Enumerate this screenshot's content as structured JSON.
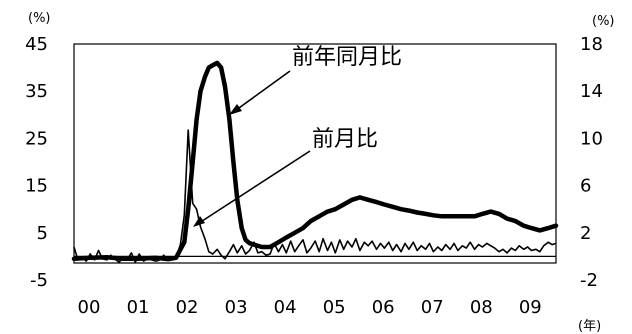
{
  "chart_data": {
    "type": "line",
    "left_axis": {
      "unit": "(%)",
      "ticks": [
        45,
        35,
        25,
        15,
        5,
        -5
      ],
      "range": [
        -5,
        45
      ]
    },
    "right_axis": {
      "unit": "(%)",
      "ticks": [
        18,
        14,
        10,
        6,
        2,
        -2
      ],
      "range": [
        -2,
        18
      ]
    },
    "x_axis": {
      "unit": "(年)",
      "ticks": [
        "00",
        "01",
        "02",
        "03",
        "04",
        "05",
        "06",
        "07",
        "08",
        "09"
      ],
      "range": [
        2000,
        2009.83
      ]
    },
    "zero_line_value_left_axis": 0,
    "series": [
      {
        "name": "前年同月比",
        "axis": "left",
        "style": "thick",
        "x": [
          2000.0,
          2000.33,
          2000.67,
          2001.0,
          2001.33,
          2001.67,
          2001.92,
          2002.08,
          2002.25,
          2002.33,
          2002.42,
          2002.5,
          2002.58,
          2002.67,
          2002.75,
          2002.83,
          2002.92,
          2003.0,
          2003.08,
          2003.17,
          2003.25,
          2003.33,
          2003.42,
          2003.5,
          2003.58,
          2003.67,
          2003.83,
          2004.0,
          2004.17,
          2004.33,
          2004.5,
          2004.67,
          2004.83,
          2005.0,
          2005.17,
          2005.33,
          2005.5,
          2005.67,
          2005.83,
          2006.0,
          2006.17,
          2006.33,
          2006.5,
          2006.67,
          2006.83,
          2007.0,
          2007.17,
          2007.33,
          2007.5,
          2007.67,
          2007.83,
          2008.0,
          2008.17,
          2008.33,
          2008.5,
          2008.67,
          2008.83,
          2009.0,
          2009.17,
          2009.33,
          2009.5,
          2009.67,
          2009.83
        ],
        "values": [
          -0.5,
          -0.3,
          -0.2,
          -0.5,
          -0.5,
          -0.3,
          -0.6,
          -0.3,
          3.0,
          10.0,
          20.0,
          29.0,
          35.0,
          38.0,
          40.0,
          40.5,
          41.0,
          40.0,
          36.0,
          29.0,
          20.0,
          12.0,
          6.0,
          3.5,
          2.8,
          2.5,
          2.0,
          2.0,
          3.0,
          4.0,
          5.0,
          6.0,
          7.5,
          8.5,
          9.5,
          10.0,
          11.0,
          12.0,
          12.5,
          12.0,
          11.5,
          11.0,
          10.5,
          10.0,
          9.7,
          9.3,
          9.0,
          8.7,
          8.5,
          8.5,
          8.5,
          8.5,
          8.5,
          9.0,
          9.5,
          9.0,
          8.0,
          7.5,
          6.5,
          6.0,
          5.5,
          6.0,
          6.5
        ]
      },
      {
        "name": "前月比",
        "axis": "right",
        "style": "thin",
        "x": [
          2000.0,
          2000.08,
          2000.17,
          2000.25,
          2000.33,
          2000.42,
          2000.5,
          2000.58,
          2000.67,
          2000.75,
          2000.83,
          2000.92,
          2001.0,
          2001.08,
          2001.17,
          2001.25,
          2001.33,
          2001.42,
          2001.5,
          2001.58,
          2001.67,
          2001.75,
          2001.83,
          2001.92,
          2002.0,
          2002.08,
          2002.17,
          2002.25,
          2002.33,
          2002.42,
          2002.5,
          2002.58,
          2002.67,
          2002.75,
          2002.83,
          2002.92,
          2003.0,
          2003.08,
          2003.17,
          2003.25,
          2003.33,
          2003.42,
          2003.5,
          2003.58,
          2003.67,
          2003.75,
          2003.83,
          2003.92,
          2004.0,
          2004.08,
          2004.17,
          2004.25,
          2004.33,
          2004.42,
          2004.5,
          2004.58,
          2004.67,
          2004.75,
          2004.83,
          2004.92,
          2005.0,
          2005.08,
          2005.17,
          2005.25,
          2005.33,
          2005.42,
          2005.5,
          2005.58,
          2005.67,
          2005.75,
          2005.83,
          2005.92,
          2006.0,
          2006.08,
          2006.17,
          2006.25,
          2006.33,
          2006.42,
          2006.5,
          2006.58,
          2006.67,
          2006.75,
          2006.83,
          2006.92,
          2007.0,
          2007.08,
          2007.17,
          2007.25,
          2007.33,
          2007.42,
          2007.5,
          2007.58,
          2007.67,
          2007.75,
          2007.83,
          2007.92,
          2008.0,
          2008.08,
          2008.17,
          2008.25,
          2008.33,
          2008.42,
          2008.5,
          2008.58,
          2008.67,
          2008.75,
          2008.83,
          2008.92,
          2009.0,
          2009.08,
          2009.17,
          2009.25,
          2009.33,
          2009.42,
          2009.5,
          2009.58,
          2009.67,
          2009.75,
          2009.83
        ],
        "values": [
          0.8,
          -0.3,
          -0.1,
          -0.4,
          0.2,
          -0.3,
          0.5,
          -0.2,
          -0.3,
          0.1,
          -0.2,
          -0.5,
          -0.1,
          -0.3,
          0.3,
          -0.5,
          0.2,
          -0.4,
          -0.2,
          -0.3,
          -0.4,
          -0.3,
          0.1,
          -0.3,
          -0.2,
          -0.1,
          1.0,
          3.5,
          10.7,
          4.5,
          4.0,
          2.5,
          1.5,
          0.4,
          0.2,
          0.6,
          0.1,
          -0.2,
          0.4,
          1.0,
          0.3,
          0.9,
          0.2,
          0.5,
          1.2,
          0.3,
          0.4,
          0.1,
          0.2,
          1.1,
          0.4,
          1.0,
          0.3,
          1.3,
          0.4,
          0.9,
          1.4,
          0.3,
          0.7,
          1.3,
          0.4,
          1.5,
          0.5,
          1.2,
          0.3,
          1.4,
          0.6,
          1.3,
          0.8,
          1.5,
          0.5,
          1.2,
          0.9,
          1.3,
          0.6,
          1.1,
          0.7,
          1.2,
          0.5,
          1.0,
          0.4,
          1.1,
          0.6,
          1.2,
          0.5,
          0.9,
          0.6,
          1.1,
          0.4,
          0.8,
          0.5,
          1.0,
          0.6,
          1.1,
          0.5,
          0.9,
          0.7,
          1.2,
          0.6,
          1.0,
          0.8,
          1.1,
          0.9,
          0.7,
          0.4,
          0.6,
          0.3,
          0.7,
          0.5,
          0.9,
          0.6,
          0.8,
          0.5,
          0.6,
          0.4,
          0.9,
          1.2,
          1.0,
          1.1
        ]
      }
    ],
    "annotations": [
      {
        "text": "前年同月比",
        "points_to_series": "前年同月比"
      },
      {
        "text": "前月比",
        "points_to_series": "前月比"
      }
    ]
  }
}
